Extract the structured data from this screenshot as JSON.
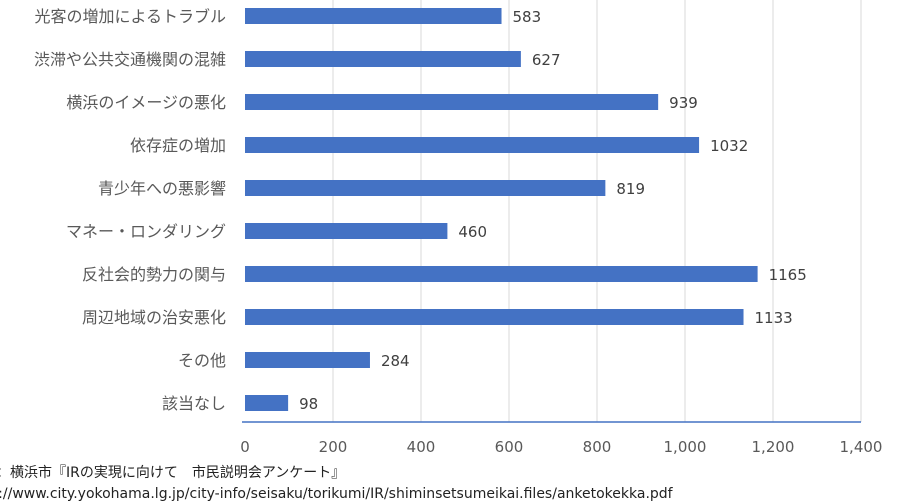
{
  "chart_data": {
    "type": "bar",
    "orientation": "horizontal",
    "categories": [
      "光客の増加によるトラブル",
      "渋滞や公共交通機関の混雑",
      "横浜のイメージの悪化",
      "依存症の増加",
      "青少年への悪影響",
      "マネー・ロンダリング",
      "反社会的勢力の関与",
      "周辺地域の治安悪化",
      "その他",
      "該当なし"
    ],
    "values": [
      583,
      627,
      939,
      1032,
      819,
      460,
      1165,
      1133,
      284,
      98
    ],
    "value_labels": [
      "583",
      "627",
      "939",
      "1032",
      "819",
      "460",
      "1165",
      "1133",
      "284",
      "98"
    ],
    "x_ticks": [
      0,
      200,
      400,
      600,
      800,
      1000,
      1200,
      1400
    ],
    "x_tick_labels": [
      "0",
      "200",
      "400",
      "600",
      "800",
      "1,000",
      "1,200",
      "1,400"
    ],
    "xlim": [
      0,
      1400
    ],
    "grid": true,
    "bar_color": "#4472c4",
    "axis_color": "#4472c4",
    "grid_color": "#d9d9d9"
  },
  "notes": {
    "source": "典：横浜市『IRの実現に向けて　市民説明会アンケート』",
    "url": "ps://www.city.yokohama.lg.jp/city-info/seisaku/torikumi/IR/shiminsetsumeikai.files/anketokekka.pdf"
  }
}
